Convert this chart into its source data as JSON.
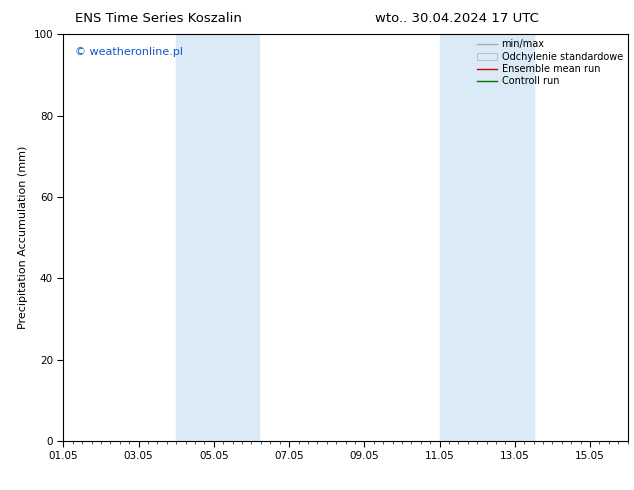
{
  "title_left": "ENS Time Series Koszalin",
  "title_right": "wto.. 30.04.2024 17 UTC",
  "ylabel": "Precipitation Accumulation (mm)",
  "ylim": [
    0,
    100
  ],
  "yticks": [
    0,
    20,
    40,
    60,
    80,
    100
  ],
  "xtick_labels": [
    "01.05",
    "03.05",
    "05.05",
    "07.05",
    "09.05",
    "11.05",
    "13.05",
    "15.05"
  ],
  "xtick_positions": [
    0,
    2,
    4,
    6,
    8,
    10,
    12,
    14
  ],
  "xlim": [
    0,
    15
  ],
  "background_color": "#ffffff",
  "plot_bg_color": "#ffffff",
  "shade_regions": [
    {
      "x_start": 3.0,
      "x_end": 5.2,
      "color": "#daeaf7"
    },
    {
      "x_start": 10.0,
      "x_end": 12.5,
      "color": "#daeaf7"
    }
  ],
  "watermark_text": "© weatheronline.pl",
  "watermark_color": "#1155cc",
  "title_fontsize": 9.5,
  "axis_label_fontsize": 8,
  "tick_fontsize": 7.5,
  "legend_fontsize": 7,
  "ylabel_fontsize": 8
}
